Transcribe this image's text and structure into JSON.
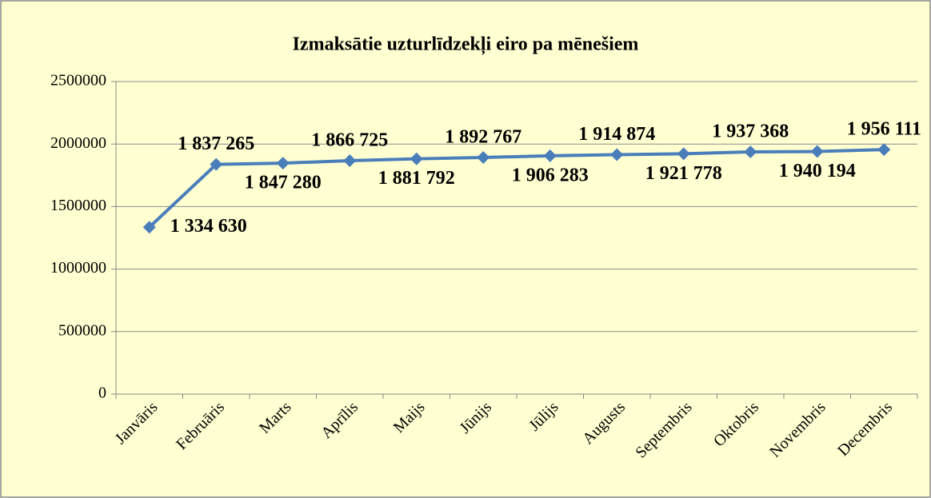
{
  "chart_data": {
    "type": "line",
    "title": "Izmaksātie uzturlīdzekļi eiro pa mēnešiem",
    "categories": [
      "Janvāris",
      "Februāris",
      "Marts",
      "Aprīlis",
      "Maijs",
      "Jūnijs",
      "Jūlijs",
      "Augusts",
      "Septembris",
      "Oktobris",
      "Novembris",
      "Decembris"
    ],
    "series": [
      {
        "name": "Izmaksātie uzturlīdzekļi",
        "color": "#4a7ebb",
        "values": [
          1334630,
          1837265,
          1847280,
          1866725,
          1881792,
          1892767,
          1906283,
          1914874,
          1921778,
          1937368,
          1940194,
          1956111
        ],
        "value_labels": [
          "1 334 630",
          "1 837 265",
          "1 847 280",
          "1 866 725",
          "1 881 792",
          "1 892 767",
          "1 906 283",
          "1 914 874",
          "1 921 778",
          "1 937 368",
          "1 940 194",
          "1 956 111"
        ]
      }
    ],
    "ylim": [
      0,
      2500000
    ],
    "yticks": [
      0,
      500000,
      1000000,
      1500000,
      2000000,
      2500000
    ],
    "grid": true
  }
}
